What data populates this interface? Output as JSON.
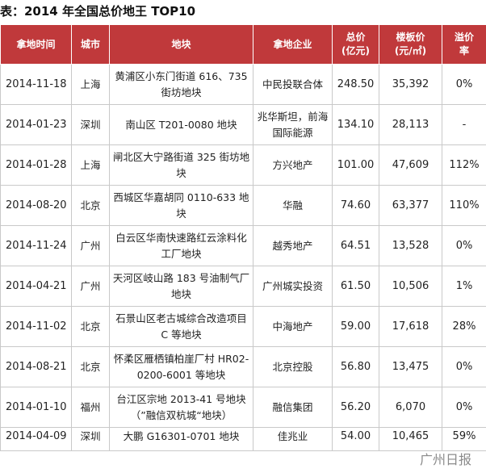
{
  "title": "表：2014 年全国总价地王 TOP10",
  "headers": {
    "date": "拿地时间",
    "city": "城市",
    "plot": "地块",
    "buyer": "拿地企业",
    "total_line1": "总价",
    "total_line2": "(亿元)",
    "floor_line1": "楼板价",
    "floor_line2": "(元/㎡)",
    "premium_line1": "溢价",
    "premium_line2": "率"
  },
  "rows": [
    {
      "date": "2014-11-18",
      "city": "上海",
      "plot": "黄浦区小东门街道 616、735 街坊地块",
      "buyer": "中民投联合体",
      "total": "248.50",
      "floor": "35,392",
      "premium": "0%"
    },
    {
      "date": "2014-01-23",
      "city": "深圳",
      "plot": "南山区 T201-0080 地块",
      "buyer": "兆华斯坦，前海国际能源",
      "total": "134.10",
      "floor": "28,113",
      "premium": "-"
    },
    {
      "date": "2014-01-28",
      "city": "上海",
      "plot": "闸北区大宁路街道 325 街坊地块",
      "buyer": "方兴地产",
      "total": "101.00",
      "floor": "47,609",
      "premium": "112%"
    },
    {
      "date": "2014-08-20",
      "city": "北京",
      "plot": "西城区华嘉胡同 0110-633 地块",
      "buyer": "华融",
      "total": "74.60",
      "floor": "63,377",
      "premium": "110%"
    },
    {
      "date": "2014-11-24",
      "city": "广州",
      "plot": "白云区华南快速路红云涂料化工厂地块",
      "buyer": "越秀地产",
      "total": "64.51",
      "floor": "13,528",
      "premium": "0%"
    },
    {
      "date": "2014-04-21",
      "city": "广州",
      "plot": "天河区岐山路 183 号油制气厂地块",
      "buyer": "广州城实投资",
      "total": "61.50",
      "floor": "10,506",
      "premium": "1%"
    },
    {
      "date": "2014-11-02",
      "city": "北京",
      "plot": "石景山区老古城综合改造项目 C 等地块",
      "buyer": "中海地产",
      "total": "59.00",
      "floor": "17,618",
      "premium": "28%"
    },
    {
      "date": "2014-08-21",
      "city": "北京",
      "plot": "怀柔区雁栖镇柏崖厂村 HR02-0200-6001 等地块",
      "buyer": "北京控股",
      "total": "56.80",
      "floor": "13,475",
      "premium": "0%"
    },
    {
      "date": "2014-01-10",
      "city": "福州",
      "plot": "台江区宗地 2013-41 号地块（”融信双杭城“地块）",
      "buyer": "融信集团",
      "total": "56.20",
      "floor": "6,070",
      "premium": "0%"
    },
    {
      "date": "2014-04-09",
      "city": "深圳",
      "plot": "大鹏 G16301-0701 地块",
      "buyer": "佳兆业",
      "total": "54.00",
      "floor": "10,465",
      "premium": "59%"
    }
  ],
  "watermark": "广州日报"
}
